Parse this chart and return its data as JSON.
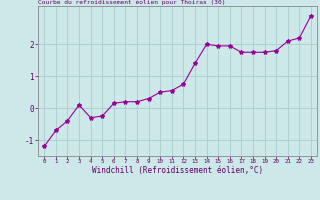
{
  "x": [
    0,
    1,
    2,
    3,
    4,
    5,
    6,
    7,
    8,
    9,
    10,
    11,
    12,
    13,
    14,
    15,
    16,
    17,
    18,
    19,
    20,
    21,
    22,
    23
  ],
  "y": [
    -1.2,
    -0.7,
    -0.4,
    0.1,
    -0.3,
    -0.25,
    0.15,
    0.2,
    0.2,
    0.3,
    0.5,
    0.55,
    0.75,
    1.4,
    2.0,
    1.95,
    1.95,
    1.75,
    1.75,
    1.75,
    1.8,
    2.1,
    2.2,
    2.9
  ],
  "xlim": [
    -0.5,
    23.5
  ],
  "ylim": [
    -1.5,
    3.2
  ],
  "yticks": [
    -1,
    0,
    1,
    2
  ],
  "xticks": [
    0,
    1,
    2,
    3,
    4,
    5,
    6,
    7,
    8,
    9,
    10,
    11,
    12,
    13,
    14,
    15,
    16,
    17,
    18,
    19,
    20,
    21,
    22,
    23
  ],
  "xlabel": "Windchill (Refroidissement éolien,°C)",
  "line_color": "#990099",
  "marker": "*",
  "marker_size": 3,
  "bg_color": "#cce8e8",
  "grid_color": "#aacccc",
  "label_color": "#660066",
  "tick_color": "#660066",
  "spine_color": "#888888"
}
